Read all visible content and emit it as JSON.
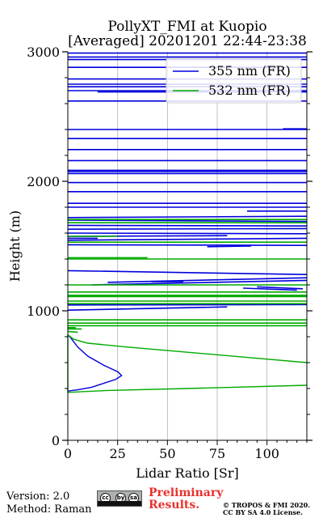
{
  "title": {
    "line1": "PollyXT_FMI at Kuopio",
    "line2": "[Averaged] 20201201 22:44-23:38"
  },
  "footer": {
    "version": "Version: 2.0",
    "method": "Method: Raman",
    "preliminary_line1": "Preliminary",
    "preliminary_line2": "Results.",
    "copyright_line1": "© TROPOS & FMI 2020.",
    "copyright_line2": "CC BY SA 4.0 License.",
    "license_badge": [
      "cc",
      "by",
      "sa"
    ]
  },
  "colors": {
    "series_355": "#0000dd",
    "series_532": "#00aa00",
    "preliminary": "#e8312d",
    "grid": "#b0b0b0"
  },
  "chart_data": {
    "type": "line",
    "title": "PollyXT_FMI at Kuopio\n[Averaged] 20201201 22:44-23:38",
    "xlabel": "Lidar Ratio [Sr]",
    "ylabel": "Height (m)",
    "xlim": [
      0,
      120
    ],
    "ylim": [
      0,
      3000
    ],
    "xticks": [
      0,
      25,
      50,
      75,
      100
    ],
    "yticks": [
      0,
      1000,
      2000,
      3000
    ],
    "x_grid": true,
    "y_grid": false,
    "legend_position": "top-right",
    "series": [
      {
        "name": "355 nm (FR)",
        "color": "#0000dd",
        "profile": [
          [
            0,
            380
          ],
          [
            5,
            390
          ],
          [
            12,
            410
          ],
          [
            18,
            440
          ],
          [
            24,
            470
          ],
          [
            27,
            500
          ],
          [
            25,
            530
          ],
          [
            18,
            580
          ],
          [
            10,
            650
          ],
          [
            5,
            720
          ],
          [
            3,
            760
          ],
          [
            1,
            800
          ],
          [
            0,
            810
          ]
        ],
        "segments": [
          [
            0,
            1005,
            80,
            1030
          ],
          [
            0,
            1045,
            120,
            1048
          ],
          [
            12,
            1200,
            120,
            1235
          ],
          [
            20,
            1220,
            120,
            1255
          ],
          [
            42,
            1225,
            58,
            1225
          ],
          [
            88,
            1175,
            115,
            1160
          ],
          [
            95,
            1185,
            118,
            1170
          ],
          [
            0,
            1310,
            120,
            1280
          ],
          [
            0,
            1510,
            120,
            1505
          ],
          [
            70,
            1495,
            92,
            1500
          ],
          [
            0,
            1545,
            120,
            1560
          ],
          [
            0,
            1560,
            15,
            1560
          ],
          [
            0,
            1575,
            80,
            1580
          ],
          [
            0,
            1600,
            120,
            1595
          ],
          [
            0,
            1630,
            120,
            1635
          ],
          [
            0,
            1660,
            120,
            1655
          ],
          [
            0,
            1700,
            120,
            1690
          ],
          [
            0,
            1720,
            120,
            1730
          ],
          [
            90,
            1770,
            120,
            1770
          ],
          [
            0,
            1800,
            120,
            1800
          ],
          [
            0,
            1830,
            120,
            1830
          ],
          [
            0,
            1920,
            120,
            1920
          ],
          [
            0,
            1990,
            120,
            1990
          ],
          [
            0,
            2060,
            120,
            2060
          ],
          [
            0,
            2075,
            120,
            2075
          ],
          [
            0,
            2085,
            120,
            2085
          ],
          [
            0,
            2160,
            120,
            2160
          ],
          [
            0,
            2245,
            120,
            2245
          ],
          [
            0,
            2330,
            120,
            2330
          ],
          [
            0,
            2400,
            120,
            2400
          ],
          [
            108,
            2405,
            120,
            2405
          ],
          [
            0,
            2620,
            120,
            2620
          ],
          [
            0,
            2700,
            120,
            2700
          ],
          [
            0,
            2730,
            120,
            2730
          ],
          [
            0,
            2750,
            120,
            2750
          ],
          [
            15,
            2690,
            120,
            2690
          ],
          [
            0,
            2790,
            120,
            2790
          ],
          [
            0,
            2880,
            120,
            2880
          ],
          [
            0,
            2940,
            120,
            2940
          ],
          [
            0,
            2960,
            120,
            2960
          ],
          [
            0,
            2990,
            120,
            2990
          ]
        ]
      },
      {
        "name": "532 nm (FR)",
        "color": "#00aa00",
        "profile": [
          [
            120,
            425
          ],
          [
            60,
            400
          ],
          [
            20,
            385
          ],
          [
            0,
            370
          ],
          [
            0,
            815
          ],
          [
            3,
            780
          ],
          [
            10,
            750
          ],
          [
            30,
            720
          ],
          [
            60,
            680
          ],
          [
            90,
            640
          ],
          [
            120,
            600
          ]
        ],
        "segments": [
          [
            0,
            840,
            5,
            835
          ],
          [
            0,
            860,
            7,
            860
          ],
          [
            0,
            870,
            4,
            870
          ],
          [
            0,
            885,
            120,
            885
          ],
          [
            0,
            905,
            120,
            905
          ],
          [
            0,
            930,
            120,
            930
          ],
          [
            0,
            1055,
            120,
            1055
          ],
          [
            0,
            1075,
            120,
            1075
          ],
          [
            0,
            1110,
            120,
            1110
          ],
          [
            0,
            1120,
            120,
            1120
          ],
          [
            0,
            1145,
            120,
            1145
          ],
          [
            0,
            1200,
            120,
            1200
          ],
          [
            0,
            1400,
            120,
            1400
          ],
          [
            0,
            1410,
            40,
            1410
          ],
          [
            0,
            1530,
            120,
            1530
          ],
          [
            0,
            1575,
            25,
            1575
          ],
          [
            0,
            1680,
            120,
            1680
          ],
          [
            0,
            1705,
            120,
            1705
          ]
        ]
      }
    ]
  }
}
